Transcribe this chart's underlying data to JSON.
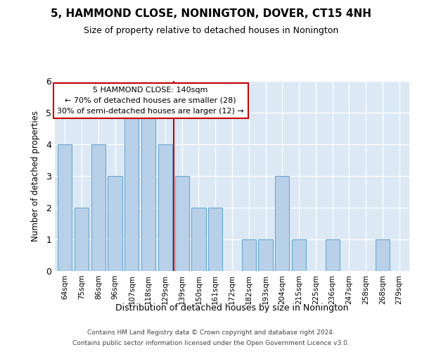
{
  "title": "5, HAMMOND CLOSE, NONINGTON, DOVER, CT15 4NH",
  "subtitle": "Size of property relative to detached houses in Nonington",
  "xlabel": "Distribution of detached houses by size in Nonington",
  "ylabel": "Number of detached properties",
  "categories": [
    "64sqm",
    "75sqm",
    "86sqm",
    "96sqm",
    "107sqm",
    "118sqm",
    "129sqm",
    "139sqm",
    "150sqm",
    "161sqm",
    "172sqm",
    "182sqm",
    "193sqm",
    "204sqm",
    "215sqm",
    "225sqm",
    "236sqm",
    "247sqm",
    "258sqm",
    "268sqm",
    "279sqm"
  ],
  "values": [
    4,
    2,
    4,
    3,
    5,
    5,
    4,
    3,
    2,
    2,
    0,
    1,
    1,
    3,
    1,
    0,
    1,
    0,
    0,
    1,
    0
  ],
  "bar_color": "#b8d0e8",
  "bar_edgecolor": "#6aaad4",
  "highlight_index": 7,
  "highlight_line_color": "#cc0000",
  "annotation_line1": "5 HAMMOND CLOSE: 140sqm",
  "annotation_line2": "← 70% of detached houses are smaller (28)",
  "annotation_line3": "30% of semi-detached houses are larger (12) →",
  "annotation_box_edgecolor": "#cc0000",
  "ylim_max": 6,
  "yticks": [
    0,
    1,
    2,
    3,
    4,
    5,
    6
  ],
  "background_color": "#ffffff",
  "plot_bg_color": "#dce9f5",
  "grid_color": "#ffffff",
  "footer1": "Contains HM Land Registry data © Crown copyright and database right 2024.",
  "footer2": "Contains public sector information licensed under the Open Government Licence v3.0."
}
